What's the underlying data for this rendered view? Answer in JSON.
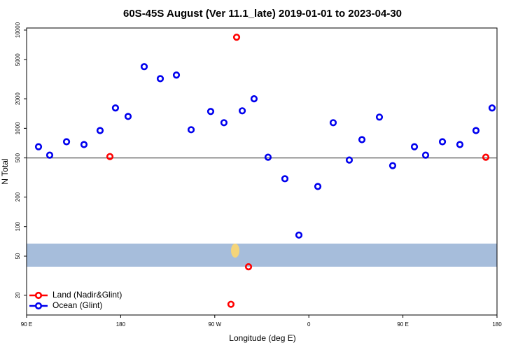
{
  "chart_data": {
    "type": "scatter",
    "title": "60S-45S August (Ver 11.1_late)   2019-01-01 to 2023-04-30",
    "x_label": "Longitude (deg E)",
    "y_label": "N Total",
    "log_y": true,
    "xlim": [
      90,
      540
    ],
    "ylim": [
      12.6,
      10500
    ],
    "xticks": [
      {
        "value": 90,
        "label": "90 E"
      },
      180,
      {
        "value": 270,
        "label": "90 W"
      },
      {
        "value": 360,
        "label": "0"
      },
      {
        "value": 450,
        "label": "90 E"
      },
      {
        "value": 540,
        "label": "180"
      }
    ],
    "yticks": [
      20,
      50,
      100,
      200,
      500,
      1000,
      2000,
      5000,
      10000
    ],
    "hline": 500,
    "legend": "bottom-left",
    "series": [
      {
        "name": "Land (Nadir&Glint)",
        "color": "#ff0000",
        "x": [
          169.7,
          290.9,
          302.3,
          285.5,
          529.3
        ],
        "values": [
          516,
          8460,
          39,
          16.2,
          508
        ]
      },
      {
        "name": "Ocean (Glint)",
        "color": "#0000ee",
        "x": [
          101.4,
          112.1,
          128.2,
          144.9,
          160.3,
          175,
          187.1,
          202.5,
          217.9,
          233.3,
          247.4,
          266.1,
          278.8,
          296.3,
          307.6,
          321,
          337.1,
          350.5,
          368.6,
          383.3,
          398.7,
          410.8,
          427.5,
          440.2,
          461,
          471.7,
          487.8,
          504.5,
          519.9,
          535.3
        ],
        "values": [
          650,
          534,
          730,
          684,
          950,
          1611,
          1322,
          4245,
          3205,
          3484,
          968,
          1484,
          1141,
          1508,
          2000,
          508,
          307,
          82,
          256,
          1141,
          476,
          767,
          1301,
          417,
          650,
          534,
          730,
          684,
          950,
          1611
        ]
      }
    ]
  }
}
